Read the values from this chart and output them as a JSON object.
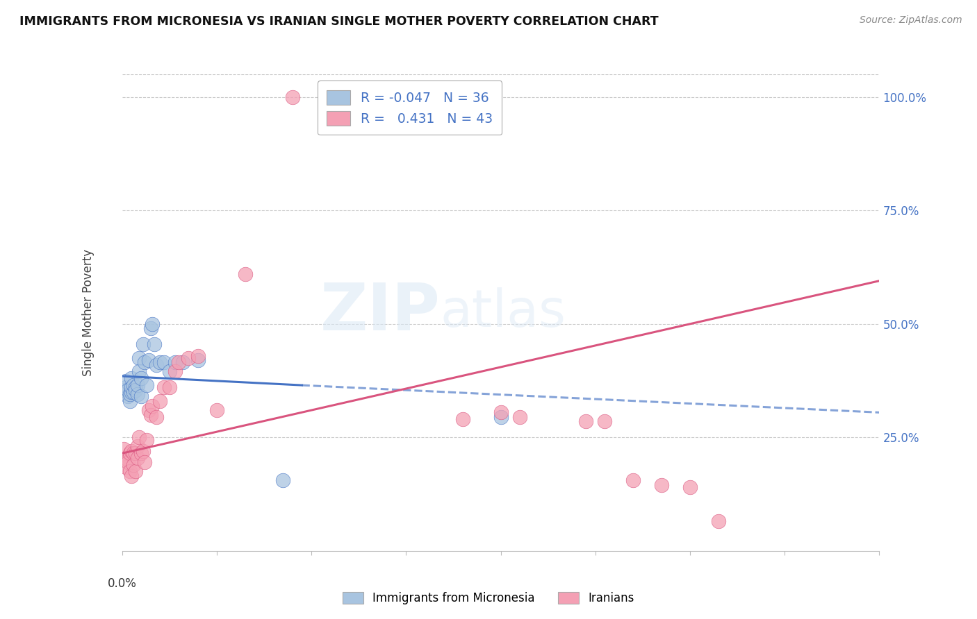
{
  "title": "IMMIGRANTS FROM MICRONESIA VS IRANIAN SINGLE MOTHER POVERTY CORRELATION CHART",
  "source": "Source: ZipAtlas.com",
  "ylabel": "Single Mother Poverty",
  "right_yticks": [
    "100.0%",
    "75.0%",
    "50.0%",
    "25.0%"
  ],
  "right_ytick_vals": [
    1.0,
    0.75,
    0.5,
    0.25
  ],
  "xlim": [
    0.0,
    0.4
  ],
  "ylim": [
    0.0,
    1.05
  ],
  "blue_R": "-0.047",
  "blue_N": "36",
  "pink_R": "0.431",
  "pink_N": "43",
  "blue_color": "#a8c4e0",
  "pink_color": "#f4a0b4",
  "blue_line_color": "#4472C4",
  "pink_line_color": "#D9547E",
  "watermark_zip": "ZIP",
  "watermark_atlas": "atlas",
  "legend_label_blue": "Immigrants from Micronesia",
  "legend_label_pink": "Iranians",
  "blue_line_x0": 0.0,
  "blue_line_x_solid_end": 0.095,
  "blue_line_x1": 0.4,
  "blue_line_y0": 0.385,
  "blue_line_y_solid_end": 0.365,
  "blue_line_y1": 0.305,
  "pink_line_x0": 0.0,
  "pink_line_x1": 0.4,
  "pink_line_y0": 0.215,
  "pink_line_y1": 0.595,
  "blue_x": [
    0.001,
    0.002,
    0.002,
    0.003,
    0.003,
    0.004,
    0.004,
    0.005,
    0.005,
    0.005,
    0.006,
    0.006,
    0.007,
    0.007,
    0.008,
    0.008,
    0.009,
    0.009,
    0.01,
    0.01,
    0.011,
    0.012,
    0.013,
    0.014,
    0.015,
    0.016,
    0.017,
    0.018,
    0.02,
    0.022,
    0.025,
    0.028,
    0.032,
    0.04,
    0.085,
    0.2
  ],
  "blue_y": [
    0.355,
    0.36,
    0.375,
    0.34,
    0.355,
    0.33,
    0.345,
    0.35,
    0.36,
    0.38,
    0.35,
    0.365,
    0.36,
    0.355,
    0.345,
    0.365,
    0.425,
    0.395,
    0.34,
    0.38,
    0.455,
    0.415,
    0.365,
    0.42,
    0.49,
    0.5,
    0.455,
    0.41,
    0.415,
    0.415,
    0.395,
    0.415,
    0.415,
    0.42,
    0.155,
    0.295
  ],
  "pink_x": [
    0.001,
    0.002,
    0.002,
    0.003,
    0.003,
    0.004,
    0.004,
    0.005,
    0.005,
    0.006,
    0.006,
    0.007,
    0.007,
    0.008,
    0.008,
    0.009,
    0.01,
    0.011,
    0.012,
    0.013,
    0.014,
    0.015,
    0.016,
    0.018,
    0.02,
    0.022,
    0.025,
    0.028,
    0.03,
    0.035,
    0.04,
    0.05,
    0.065,
    0.18,
    0.2,
    0.21,
    0.245,
    0.255,
    0.27,
    0.285,
    0.3,
    0.315,
    0.09
  ],
  "pink_y": [
    0.225,
    0.205,
    0.185,
    0.2,
    0.195,
    0.215,
    0.175,
    0.22,
    0.165,
    0.215,
    0.19,
    0.215,
    0.175,
    0.205,
    0.23,
    0.25,
    0.215,
    0.22,
    0.195,
    0.245,
    0.31,
    0.3,
    0.32,
    0.295,
    0.33,
    0.36,
    0.36,
    0.395,
    0.415,
    0.425,
    0.43,
    0.31,
    0.61,
    0.29,
    0.305,
    0.295,
    0.285,
    0.285,
    0.155,
    0.145,
    0.14,
    0.065,
    1.0
  ]
}
